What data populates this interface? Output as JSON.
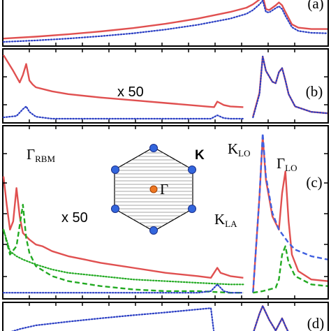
{
  "figure": {
    "panels": [
      {
        "id": "a",
        "label": "(a)"
      },
      {
        "id": "b",
        "label": "(b)",
        "scale_note": "x 50"
      },
      {
        "id": "c",
        "label": "(c)",
        "scale_note": "x 50"
      },
      {
        "id": "d",
        "label": "(d)"
      }
    ],
    "annotations": {
      "rbm_main": "Γ",
      "rbm_sub": "RBM",
      "klo_main": "K",
      "klo_sub": "LO",
      "glo_main": "Γ",
      "glo_sub": "LO",
      "kla_main": "K",
      "kla_sub": "LA"
    },
    "inset": {
      "gamma_label": "Γ",
      "k_label": "K",
      "vertex_color": "#3366dd",
      "center_color": "#ee7722"
    }
  },
  "chart_data": {
    "type": "line",
    "title": "",
    "xlabel": "",
    "ylabel": "",
    "xlim": [
      0,
      1
    ],
    "series_style": {
      "red": {
        "color": "#e05050",
        "dash": "solid"
      },
      "blue": {
        "color": "#2b3fc4",
        "dash": "dotted"
      },
      "green": {
        "color": "#22aa22",
        "dash": "dashed"
      },
      "green_dot": {
        "color": "#22aa22",
        "dash": "dotted"
      },
      "blue_dash": {
        "color": "#4060e0",
        "dash": "dashed"
      }
    },
    "panels": [
      {
        "id": "a",
        "series": [
          {
            "style": "red",
            "x": [
              0.0,
              0.1,
              0.2,
              0.3,
              0.4,
              0.5,
              0.6,
              0.7,
              0.75,
              0.77,
              0.79,
              0.8,
              0.81,
              0.82,
              0.84,
              0.85,
              0.86,
              0.87,
              0.89,
              0.91,
              0.95,
              1.0
            ],
            "y": [
              0.1,
              0.14,
              0.19,
              0.25,
              0.32,
              0.41,
              0.52,
              0.66,
              0.75,
              0.82,
              0.92,
              1.0,
              0.72,
              0.7,
              0.8,
              0.86,
              0.8,
              0.66,
              0.4,
              0.33,
              0.3,
              0.3
            ]
          },
          {
            "style": "blue",
            "x": [
              0.0,
              0.1,
              0.2,
              0.3,
              0.4,
              0.5,
              0.6,
              0.7,
              0.75,
              0.77,
              0.79,
              0.8,
              0.81,
              0.82,
              0.84,
              0.85,
              0.86,
              0.87,
              0.89,
              0.91,
              0.95,
              1.0
            ],
            "y": [
              0.03,
              0.06,
              0.1,
              0.15,
              0.21,
              0.29,
              0.39,
              0.52,
              0.62,
              0.7,
              0.82,
              0.9,
              0.66,
              0.65,
              0.74,
              0.78,
              0.72,
              0.58,
              0.34,
              0.26,
              0.22,
              0.21
            ]
          }
        ]
      },
      {
        "id": "b",
        "series": [
          {
            "style": "red",
            "x": [
              0.0,
              0.03,
              0.05,
              0.06,
              0.07,
              0.075,
              0.08,
              0.09,
              0.1,
              0.15,
              0.2,
              0.3,
              0.4,
              0.5,
              0.6,
              0.65,
              0.66,
              0.68,
              0.7,
              0.74
            ],
            "y": [
              0.95,
              0.72,
              0.55,
              0.66,
              0.82,
              0.7,
              0.58,
              0.52,
              0.48,
              0.42,
              0.38,
              0.33,
              0.29,
              0.25,
              0.21,
              0.19,
              0.27,
              0.22,
              0.2,
              0.19
            ]
          },
          {
            "style": "blue",
            "x": [
              0.0,
              0.04,
              0.06,
              0.07,
              0.08,
              0.1,
              0.15,
              0.2,
              0.3,
              0.4,
              0.5,
              0.6,
              0.64,
              0.66,
              0.68,
              0.7,
              0.74
            ],
            "y": [
              0.04,
              0.06,
              0.16,
              0.2,
              0.12,
              0.05,
              0.02,
              0.02,
              0.02,
              0.02,
              0.02,
              0.02,
              0.02,
              0.07,
              0.03,
              0.02,
              0.02
            ]
          },
          {
            "style": "red",
            "x": [
              0.77,
              0.79,
              0.8,
              0.81,
              0.83,
              0.84,
              0.85,
              0.86,
              0.87,
              0.88,
              0.9,
              0.95,
              1.0
            ],
            "y": [
              0.05,
              0.4,
              0.93,
              0.72,
              0.56,
              0.54,
              0.7,
              0.76,
              0.58,
              0.38,
              0.2,
              0.12,
              0.1
            ]
          },
          {
            "style": "blue",
            "x": [
              0.77,
              0.79,
              0.8,
              0.81,
              0.83,
              0.84,
              0.85,
              0.86,
              0.87,
              0.88,
              0.9,
              0.95,
              1.0
            ],
            "y": [
              0.04,
              0.38,
              0.93,
              0.72,
              0.56,
              0.54,
              0.7,
              0.76,
              0.58,
              0.38,
              0.2,
              0.12,
              0.1
            ]
          }
        ]
      },
      {
        "id": "c",
        "series": [
          {
            "style": "red",
            "x": [
              0.0,
              0.01,
              0.02,
              0.03,
              0.04,
              0.05,
              0.06,
              0.08,
              0.1,
              0.12,
              0.15,
              0.2,
              0.25,
              0.3,
              0.4,
              0.5,
              0.6,
              0.64,
              0.66,
              0.67,
              0.7,
              0.74
            ],
            "y": [
              0.72,
              0.55,
              0.4,
              0.45,
              0.65,
              0.48,
              0.38,
              0.34,
              0.31,
              0.3,
              0.27,
              0.24,
              0.22,
              0.2,
              0.17,
              0.14,
              0.12,
              0.11,
              0.17,
              0.14,
              0.12,
              0.11
            ]
          },
          {
            "style": "green",
            "x": [
              0.0,
              0.02,
              0.04,
              0.06,
              0.07,
              0.08,
              0.1,
              0.15,
              0.2,
              0.3,
              0.4,
              0.5,
              0.6,
              0.7,
              0.74
            ],
            "y": [
              0.4,
              0.25,
              0.3,
              0.55,
              0.35,
              0.26,
              0.18,
              0.12,
              0.09,
              0.06,
              0.04,
              0.03,
              0.03,
              0.02,
              0.02
            ]
          },
          {
            "style": "green_dot",
            "x": [
              0.0,
              0.02,
              0.04,
              0.06,
              0.1,
              0.15,
              0.2,
              0.3,
              0.4,
              0.5,
              0.6,
              0.7,
              0.74
            ],
            "y": [
              0.4,
              0.27,
              0.24,
              0.22,
              0.19,
              0.16,
              0.14,
              0.12,
              0.1,
              0.09,
              0.08,
              0.07,
              0.07
            ]
          },
          {
            "style": "blue",
            "x": [
              0.0,
              0.2,
              0.4,
              0.6,
              0.64,
              0.66,
              0.68,
              0.7,
              0.74
            ],
            "y": [
              0.02,
              0.02,
              0.02,
              0.02,
              0.03,
              0.07,
              0.03,
              0.02,
              0.02
            ]
          },
          {
            "style": "red",
            "x": [
              0.77,
              0.79,
              0.8,
              0.81,
              0.83,
              0.85,
              0.86,
              0.87,
              0.88,
              0.89,
              0.91,
              0.95,
              1.0
            ],
            "y": [
              0.02,
              0.6,
              0.96,
              0.7,
              0.48,
              0.4,
              0.62,
              0.75,
              0.45,
              0.25,
              0.15,
              0.1,
              0.09
            ]
          },
          {
            "style": "blue_dash",
            "x": [
              0.77,
              0.79,
              0.8,
              0.81,
              0.83,
              0.85,
              0.88,
              0.9,
              0.95,
              1.0
            ],
            "y": [
              0.02,
              0.6,
              0.98,
              0.72,
              0.5,
              0.4,
              0.32,
              0.28,
              0.24,
              0.22
            ]
          },
          {
            "style": "green",
            "x": [
              0.77,
              0.8,
              0.84,
              0.85,
              0.86,
              0.87,
              0.88,
              0.9,
              0.95,
              1.0
            ],
            "y": [
              0.02,
              0.03,
              0.05,
              0.1,
              0.25,
              0.3,
              0.2,
              0.12,
              0.07,
              0.06
            ]
          }
        ]
      },
      {
        "id": "d",
        "series": [
          {
            "style": "blue",
            "x": [
              0.0,
              0.02,
              0.05,
              0.1,
              0.2,
              0.3,
              0.4,
              0.5,
              0.6,
              0.64,
              0.65,
              0.68,
              0.74
            ],
            "y": [
              0.05,
              0.1,
              0.2,
              0.32,
              0.44,
              0.55,
              0.65,
              0.74,
              0.84,
              0.88,
              0.05,
              0.03,
              0.03
            ]
          },
          {
            "style": "red",
            "x": [
              0.77,
              0.79,
              0.8,
              0.82,
              0.84,
              0.85,
              0.86,
              0.87,
              0.88,
              0.9,
              0.95,
              1.0
            ],
            "y": [
              0.05,
              0.7,
              0.95,
              0.5,
              0.15,
              0.35,
              0.55,
              0.3,
              0.08,
              0.06,
              0.05,
              0.05
            ]
          },
          {
            "style": "blue",
            "x": [
              0.77,
              0.79,
              0.8,
              0.82,
              0.84,
              0.85,
              0.86,
              0.87,
              0.88,
              0.9,
              0.95,
              1.0
            ],
            "y": [
              0.05,
              0.7,
              0.95,
              0.5,
              0.15,
              0.35,
              0.55,
              0.3,
              0.08,
              0.06,
              0.05,
              0.05
            ]
          }
        ]
      }
    ]
  }
}
